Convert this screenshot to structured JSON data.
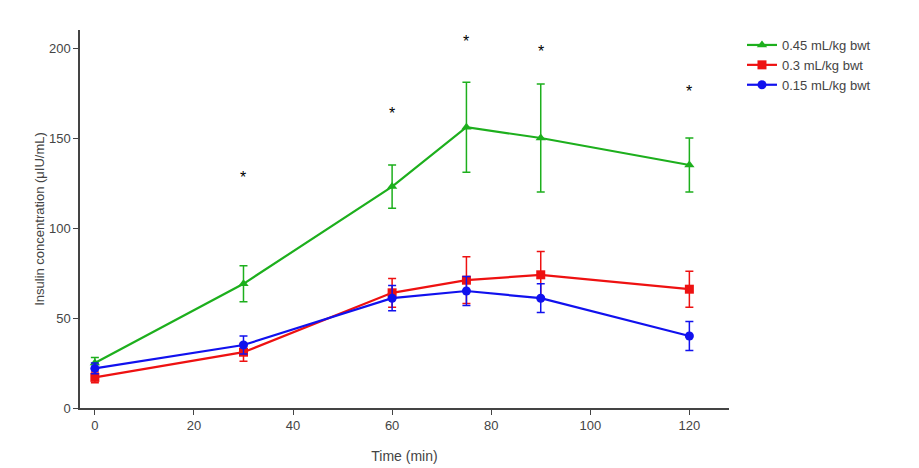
{
  "chart_data": {
    "type": "line",
    "x": [
      0,
      30,
      60,
      75,
      90,
      120
    ],
    "xlabel": "Time (min)",
    "ylabel": "Insulin concentration (μIU/mL)",
    "xlim": [
      -3,
      128
    ],
    "ylim": [
      0,
      210
    ],
    "xticks": [
      0,
      20,
      40,
      60,
      80,
      100,
      120
    ],
    "yticks": [
      0,
      50,
      100,
      150,
      200
    ],
    "grid": false,
    "legend": "upper right",
    "series": [
      {
        "name": "0.45 mL/kg bwt",
        "color": "#1DAF1D",
        "marker": "triangle-up",
        "values": [
          25,
          69,
          123,
          156,
          150,
          135
        ],
        "errors": [
          3,
          10,
          12,
          25,
          30,
          15
        ]
      },
      {
        "name": "0.3 mL/kg bwt",
        "color": "#EE1111",
        "marker": "square",
        "values": [
          17,
          31,
          64,
          71,
          74,
          66
        ],
        "errors": [
          3,
          5,
          8,
          13,
          13,
          10
        ]
      },
      {
        "name": "0.15 mL/kg bwt",
        "color": "#1111EE",
        "marker": "circle",
        "values": [
          22,
          35,
          61,
          65,
          61,
          40
        ],
        "errors": [
          3,
          5,
          7,
          8,
          8,
          8
        ]
      }
    ],
    "annotations": [
      {
        "x": 30,
        "y": 122,
        "text": "*"
      },
      {
        "x": 60,
        "y": 158,
        "text": "*"
      },
      {
        "x": 75,
        "y": 198,
        "text": "*"
      },
      {
        "x": 90,
        "y": 192,
        "text": "*"
      },
      {
        "x": 120,
        "y": 170,
        "text": "*"
      }
    ]
  }
}
